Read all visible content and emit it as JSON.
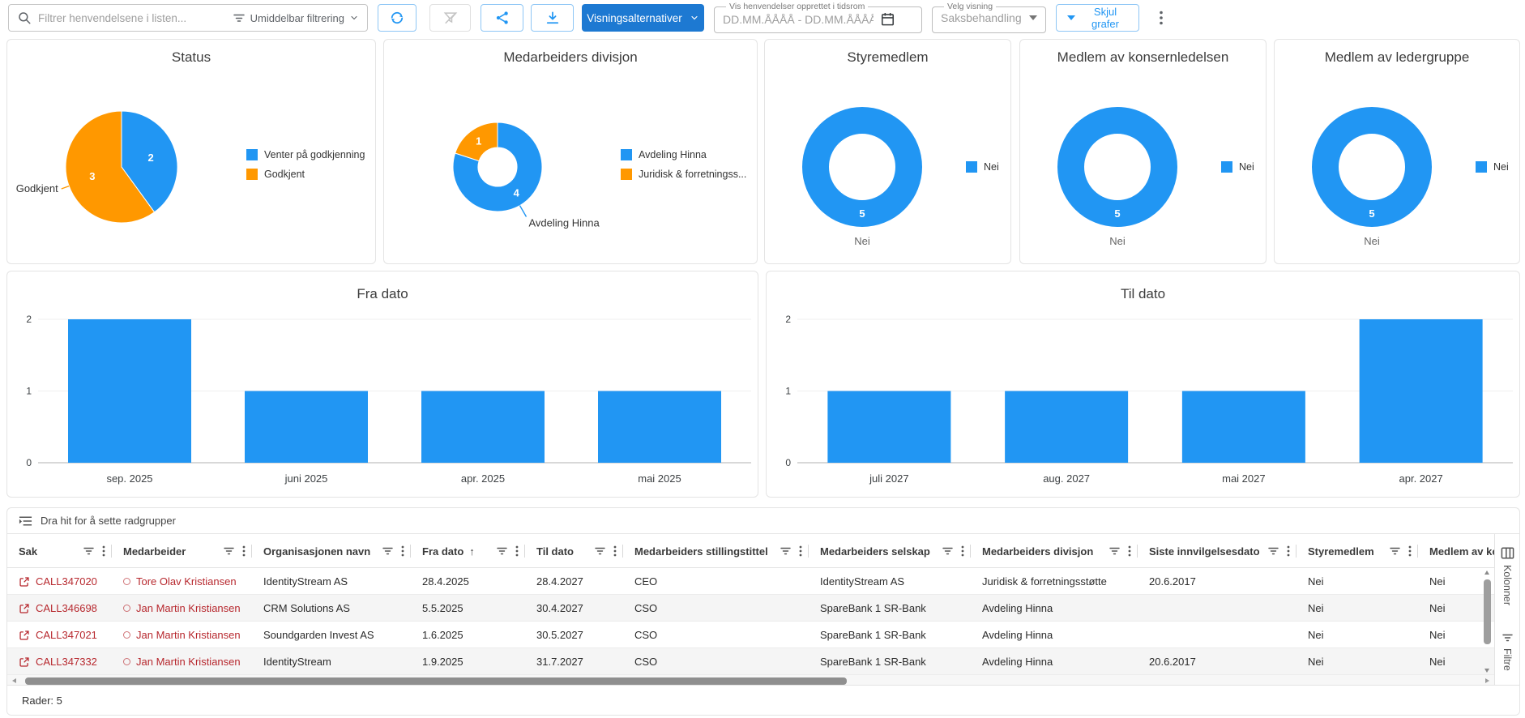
{
  "toolbar": {
    "search_placeholder": "Filtrer henvendelsene i listen...",
    "instant_filter_label": "Umiddelbar filtrering",
    "view_options_label": "Visningsalternativer",
    "date_range": {
      "legend": "Vis henvendelser opprettet i tidsrom",
      "placeholder": "DD.MM.ÅÅÅÅ - DD.MM.ÅÅÅÅ"
    },
    "view_select": {
      "legend": "Velg visning",
      "value": "Saksbehandling"
    },
    "hide_charts_label": "Skjul grafer"
  },
  "colors": {
    "blue": "#2196f3",
    "orange": "#ff9800",
    "button_blue": "#1d79d2",
    "link_red": "#b7282e"
  },
  "chart_data": [
    {
      "id": "status",
      "type": "pie",
      "donut": false,
      "title": "Status",
      "labels": [
        "Venter på godkjenning",
        "Godkjent"
      ],
      "values": [
        2,
        3
      ],
      "colors": [
        "#2196f3",
        "#ff9800"
      ],
      "legend_position": "right",
      "callout": {
        "label": "Godkjent",
        "slice": 1
      }
    },
    {
      "id": "divisjon",
      "type": "pie",
      "donut": true,
      "title": "Medarbeiders divisjon",
      "labels": [
        "Avdeling Hinna",
        "Juridisk & forretningss..."
      ],
      "values": [
        4,
        1
      ],
      "colors": [
        "#2196f3",
        "#ff9800"
      ],
      "legend_position": "right",
      "callout": {
        "label": "Avdeling Hinna",
        "slice": 0
      }
    },
    {
      "id": "styremedlem",
      "type": "pie",
      "donut": true,
      "title": "Styremedlem",
      "labels": [
        "Nei"
      ],
      "values": [
        5
      ],
      "colors": [
        "#2196f3"
      ],
      "legend_position": "right",
      "caption": "Nei"
    },
    {
      "id": "konsernledelsen",
      "type": "pie",
      "donut": true,
      "title": "Medlem av konsernledelsen",
      "labels": [
        "Nei"
      ],
      "values": [
        5
      ],
      "colors": [
        "#2196f3"
      ],
      "legend_position": "right",
      "caption": "Nei"
    },
    {
      "id": "ledergruppe",
      "type": "pie",
      "donut": true,
      "title": "Medlem av ledergruppe",
      "labels": [
        "Nei"
      ],
      "values": [
        5
      ],
      "colors": [
        "#2196f3"
      ],
      "legend_position": "right",
      "caption": "Nei"
    },
    {
      "id": "fra-dato",
      "type": "bar",
      "title": "Fra dato",
      "categories": [
        "sep. 2025",
        "juni 2025",
        "apr. 2025",
        "mai 2025"
      ],
      "values": [
        2,
        1,
        1,
        1
      ],
      "ylim": [
        0,
        2
      ],
      "yticks": [
        0,
        1,
        2
      ],
      "grid": true
    },
    {
      "id": "til-dato",
      "type": "bar",
      "title": "Til dato",
      "categories": [
        "juli 2027",
        "aug. 2027",
        "mai 2027",
        "apr. 2027"
      ],
      "values": [
        1,
        1,
        1,
        2
      ],
      "ylim": [
        0,
        2
      ],
      "yticks": [
        0,
        1,
        2
      ],
      "grid": true
    }
  ],
  "table": {
    "group_hint": "Dra hit for å sette radgrupper",
    "columns": [
      {
        "label": "Sak"
      },
      {
        "label": "Medarbeider"
      },
      {
        "label": "Organisasjonen navn"
      },
      {
        "label": "Fra dato",
        "sort": "asc"
      },
      {
        "label": "Til dato"
      },
      {
        "label": "Medarbeiders stillingstittel"
      },
      {
        "label": "Medarbeiders selskap"
      },
      {
        "label": "Medarbeiders divisjon"
      },
      {
        "label": "Siste innvilgelsesdato"
      },
      {
        "label": "Styremedlem"
      },
      {
        "label": "Medlem av ko"
      }
    ],
    "rows": [
      {
        "sak": "CALL347020",
        "medarbeider": "Tore Olav Kristiansen",
        "organisasjon": "IdentityStream AS",
        "fra": "28.4.2025",
        "til": "28.4.2027",
        "stilling": "CEO",
        "selskap": "IdentityStream AS",
        "divisjon": "Juridisk & forretningsstøtte",
        "siste": "20.6.2017",
        "styremedlem": "Nei",
        "medlem": "Nei"
      },
      {
        "sak": "CALL346698",
        "medarbeider": "Jan Martin Kristiansen",
        "organisasjon": "CRM Solutions AS",
        "fra": "5.5.2025",
        "til": "30.4.2027",
        "stilling": "CSO",
        "selskap": "SpareBank 1 SR-Bank",
        "divisjon": "Avdeling Hinna",
        "siste": "",
        "styremedlem": "Nei",
        "medlem": "Nei"
      },
      {
        "sak": "CALL347021",
        "medarbeider": "Jan Martin Kristiansen",
        "organisasjon": "Soundgarden Invest AS",
        "fra": "1.6.2025",
        "til": "30.5.2027",
        "stilling": "CSO",
        "selskap": "SpareBank 1 SR-Bank",
        "divisjon": "Avdeling Hinna",
        "siste": "",
        "styremedlem": "Nei",
        "medlem": "Nei"
      },
      {
        "sak": "CALL347332",
        "medarbeider": "Jan Martin Kristiansen",
        "organisasjon": "IdentityStream",
        "fra": "1.9.2025",
        "til": "31.7.2027",
        "stilling": "CSO",
        "selskap": "SpareBank 1 SR-Bank",
        "divisjon": "Avdeling Hinna",
        "siste": "20.6.2017",
        "styremedlem": "Nei",
        "medlem": "Nei"
      }
    ],
    "footer": "Rader: 5",
    "side_tabs": [
      "Kolonner",
      "Filtre"
    ]
  }
}
